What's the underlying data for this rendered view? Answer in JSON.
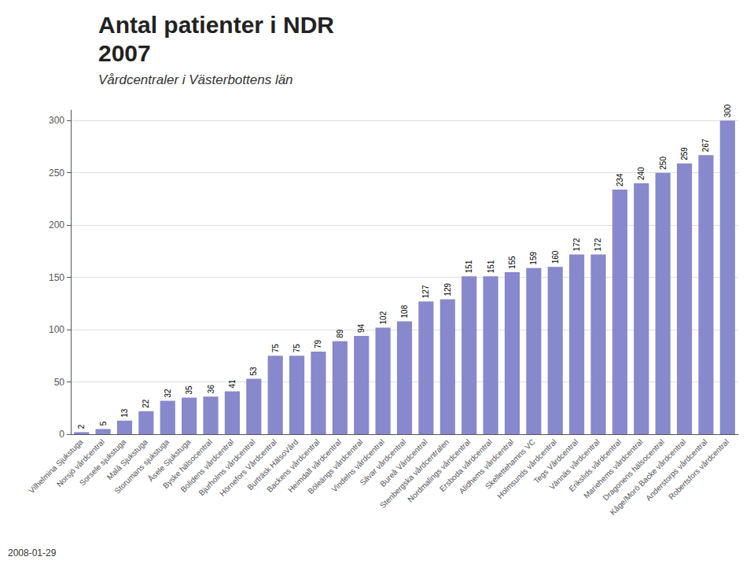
{
  "chart_data": {
    "type": "bar",
    "title": "Antal patienter i NDR\n2007",
    "subtitle": "Vårdcentraler i Västerbottens län",
    "annotations": [
      "2008-01-29"
    ],
    "categories": [
      "Vilhelmina Sjukstuga",
      "Norsjö vårdcentral",
      "Sorsele sjukstuga",
      "Malå Sjukstuga",
      "Storumans sjukstuga",
      "Åsele Sjukstuga",
      "Byske hälsocentral",
      "Bolidens vårdcentral",
      "Bjurholms vårdcentral",
      "Hörnefors Vårdcentral",
      "Burträsk HälsoVård",
      "Backens vårdcentral",
      "Heimdall vårdcentral",
      "Böleängs vårdcentral",
      "Vindelns vårdcentral",
      "Sävar vårdcentral",
      "Bureå Vårdcentral",
      "Stenbergska vårdcentralen",
      "Nordmalings vårdcentral",
      "Ersboda vårdcentral",
      "Alidhems vårdcentral",
      "Skellettehamns VC",
      "Holmsunds vårdcentral",
      "Tegs Vårdcentral",
      "Vännäs vårdcentral",
      "Erikslids vårdcentral",
      "Mariehems vårdcentral",
      "Dragonens hälsocentral",
      "Kåge/Morö Backe vårdcentral",
      "Anderstorps vårdcentral",
      "Robertsfors vårdcentral"
    ],
    "values": [
      2,
      5,
      13,
      22,
      32,
      35,
      36,
      41,
      53,
      75,
      75,
      79,
      89,
      94,
      102,
      108,
      127,
      129,
      151,
      151,
      155,
      159,
      160,
      172,
      172,
      234,
      240,
      250,
      259,
      267,
      300
    ],
    "color": "#8888cc",
    "ylim": [
      0,
      310
    ],
    "yticks": [
      0,
      50,
      100,
      150,
      200,
      250,
      300
    ],
    "grid": true,
    "data_labels": true
  }
}
